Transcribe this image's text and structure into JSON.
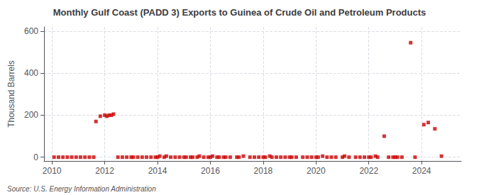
{
  "chart_data": {
    "type": "scatter",
    "title": "Monthly Gulf Coast (PADD 3) Exports to Guinea of Crude Oil and Petroleum Products",
    "ylabel": "Thousand Barrels",
    "source": "Source: U.S. Energy Information Administration",
    "color": "#cc0000",
    "marker": "square",
    "grid": true,
    "xlim": [
      2009.7,
      2025.5
    ],
    "xticks": [
      2010,
      2012,
      2014,
      2016,
      2018,
      2020,
      2022,
      2024
    ],
    "ylim": [
      -18,
      620
    ],
    "yticks": [
      0,
      200,
      400,
      600
    ],
    "x": [
      2010.083,
      2010.25,
      2010.417,
      2010.583,
      2010.75,
      2010.917,
      2011.083,
      2011.25,
      2011.417,
      2011.583,
      2011.667,
      2011.833,
      2012.0,
      2012.083,
      2012.167,
      2012.25,
      2012.333,
      2012.5,
      2012.667,
      2012.833,
      2013.0,
      2013.083,
      2013.25,
      2013.417,
      2013.583,
      2013.75,
      2013.917,
      2014.0,
      2014.083,
      2014.25,
      2014.333,
      2014.5,
      2014.667,
      2014.833,
      2015.0,
      2015.083,
      2015.25,
      2015.333,
      2015.5,
      2015.583,
      2015.75,
      2015.917,
      2016.0,
      2016.083,
      2016.25,
      2016.333,
      2016.5,
      2016.583,
      2016.75,
      2017.0,
      2017.083,
      2017.25,
      2017.5,
      2017.667,
      2017.833,
      2018.0,
      2018.083,
      2018.25,
      2018.333,
      2018.5,
      2018.667,
      2018.833,
      2019.0,
      2019.083,
      2019.25,
      2019.5,
      2019.667,
      2019.833,
      2020.0,
      2020.083,
      2020.25,
      2020.417,
      2020.583,
      2020.75,
      2021.0,
      2021.083,
      2021.25,
      2021.5,
      2021.667,
      2021.833,
      2022.0,
      2022.083,
      2022.25,
      2022.333,
      2022.583,
      2022.75,
      2022.917,
      2023.0,
      2023.083,
      2023.25,
      2023.583,
      2023.75,
      2024.083,
      2024.25,
      2024.5,
      2024.75
    ],
    "values": [
      0,
      0,
      0,
      0,
      0,
      0,
      0,
      0,
      0,
      0,
      170,
      195,
      200,
      195,
      200,
      200,
      205,
      0,
      0,
      0,
      0,
      0,
      0,
      0,
      0,
      0,
      0,
      0,
      5,
      0,
      5,
      0,
      0,
      0,
      0,
      0,
      0,
      0,
      0,
      5,
      0,
      0,
      0,
      5,
      0,
      0,
      0,
      0,
      0,
      0,
      0,
      5,
      0,
      0,
      0,
      0,
      0,
      5,
      0,
      0,
      0,
      0,
      0,
      0,
      0,
      0,
      0,
      0,
      0,
      0,
      5,
      0,
      0,
      0,
      0,
      5,
      0,
      0,
      0,
      0,
      0,
      0,
      5,
      0,
      100,
      0,
      0,
      0,
      0,
      0,
      545,
      0,
      155,
      165,
      135,
      5
    ]
  }
}
